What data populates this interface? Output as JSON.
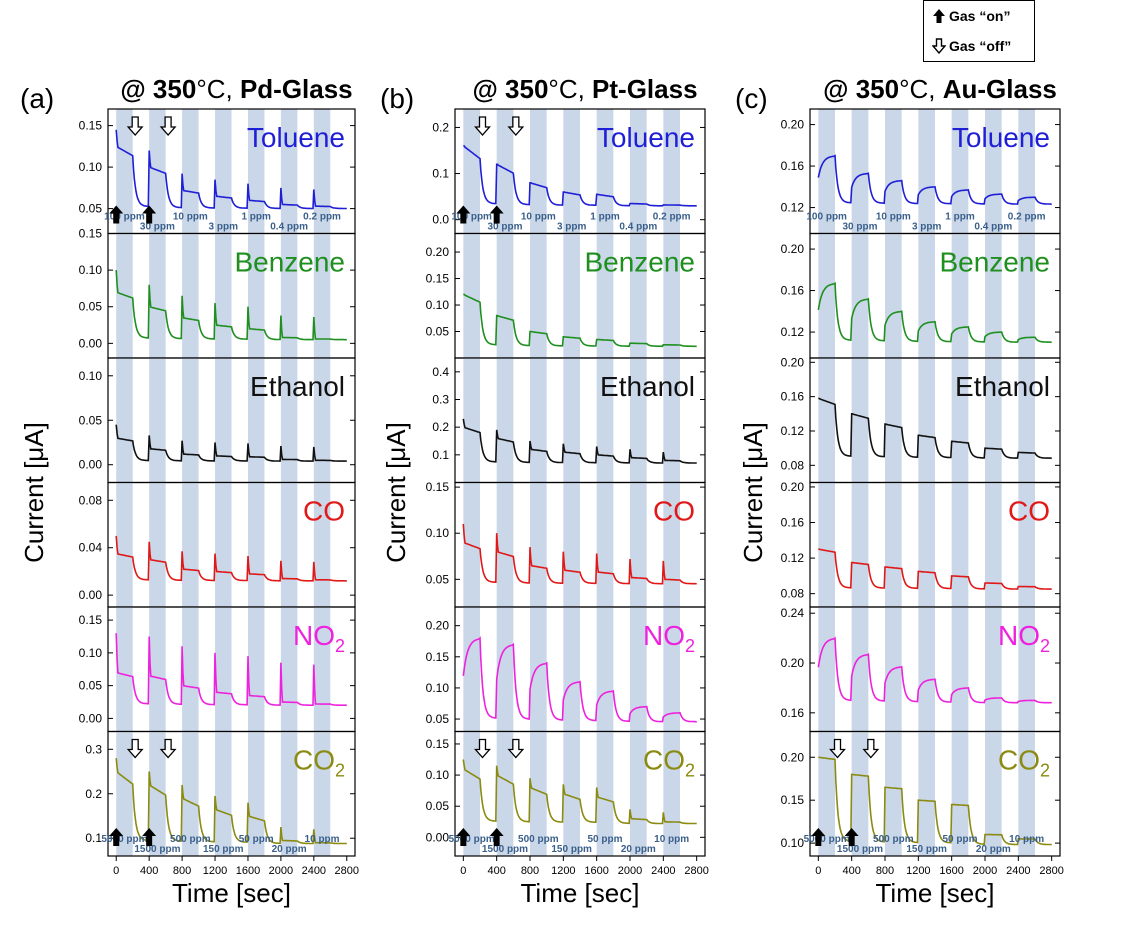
{
  "legend": {
    "on_label": "Gas “on”",
    "off_label": "Gas “off”"
  },
  "x_axis": {
    "label": "Time [sec]",
    "ticks": [
      "0",
      "400",
      "800",
      "1200",
      "1600",
      "2000",
      "2400",
      "2800"
    ],
    "values": [
      0,
      400,
      800,
      1200,
      1600,
      2000,
      2400,
      2800
    ],
    "range": [
      -100,
      2900
    ]
  },
  "y_label": "Current [μA]",
  "gas_on_intervals": [
    [
      0,
      200
    ],
    [
      400,
      600
    ],
    [
      800,
      1000
    ],
    [
      1200,
      1400
    ],
    [
      1600,
      1800
    ],
    [
      2000,
      2200
    ],
    [
      2400,
      2600
    ]
  ],
  "concentration_labels": {
    "standard": [
      "100 ppm",
      "30 ppm",
      "10 ppm",
      "3 ppm",
      "1 ppm",
      "0.4 ppm",
      "0.2 ppm"
    ],
    "co2": [
      "5000 ppm",
      "1500 ppm",
      "500 ppm",
      "150 ppm",
      "50 ppm",
      "20 ppm",
      "10 ppm"
    ]
  },
  "colors": {
    "Toluene": "#1f1fd6",
    "Benzene": "#1f8f1f",
    "Ethanol": "#111111",
    "CO": "#e01818",
    "NO2": "#ee22dd",
    "CO2": "#8b8b12",
    "stripe": "#c9d7e8"
  },
  "chart_data": [
    {
      "type": "line",
      "panel_letter": "(a)",
      "title": "@ 350°C, Pd-Glass",
      "subplots": [
        {
          "gas": "Toluene",
          "label": "Toluene",
          "ylim": [
            0.02,
            0.17
          ],
          "yticks": [
            "0.05",
            "0.10",
            "0.15"
          ],
          "ytick_values": [
            0.05,
            0.1,
            0.15
          ],
          "base": 0.05,
          "peaks": [
            0.125,
            0.1,
            0.072,
            0.065,
            0.06,
            0.055,
            0.053
          ],
          "decay": 0.6,
          "spike": 0.02,
          "arrows": [
            {
              "kind": "on",
              "t": 0
            },
            {
              "kind": "off",
              "t": 200
            },
            {
              "kind": "on",
              "t": 400
            },
            {
              "kind": "off",
              "t": 600
            }
          ]
        },
        {
          "gas": "Benzene",
          "label": "Benzene",
          "ylim": [
            -0.02,
            0.15
          ],
          "yticks": [
            "0.00",
            "0.05",
            "0.10",
            "0.15"
          ],
          "ytick_values": [
            0.0,
            0.05,
            0.1,
            0.15
          ],
          "base": 0.005,
          "peaks": [
            0.07,
            0.05,
            0.035,
            0.025,
            0.02,
            0.008,
            0.006
          ],
          "decay": 0.5,
          "spike": 0.03,
          "arrows": []
        },
        {
          "gas": "Ethanol",
          "label": "Ethanol",
          "ylim": [
            -0.02,
            0.12
          ],
          "yticks": [
            "0.00",
            "0.05",
            "0.10"
          ],
          "ytick_values": [
            0.0,
            0.05,
            0.1
          ],
          "base": 0.004,
          "peaks": [
            0.03,
            0.018,
            0.012,
            0.01,
            0.009,
            0.006,
            0.005
          ],
          "decay": 0.5,
          "spike": 0.015,
          "arrows": []
        },
        {
          "gas": "CO",
          "label": "CO",
          "ylim": [
            -0.01,
            0.095
          ],
          "yticks": [
            "0.00",
            "0.04",
            "0.08"
          ],
          "ytick_values": [
            0.0,
            0.04,
            0.08
          ],
          "base": 0.012,
          "peaks": [
            0.035,
            0.03,
            0.022,
            0.02,
            0.018,
            0.014,
            0.013
          ],
          "decay": 0.5,
          "spike": 0.015,
          "arrows": []
        },
        {
          "gas": "NO2",
          "label": "NO",
          "label_sub": "2",
          "ylim": [
            -0.02,
            0.17
          ],
          "yticks": [
            "0.00",
            "0.05",
            "0.10",
            "0.15"
          ],
          "ytick_values": [
            0.0,
            0.05,
            0.1,
            0.15
          ],
          "base": 0.02,
          "peaks": [
            0.07,
            0.065,
            0.05,
            0.04,
            0.035,
            0.025,
            0.022
          ],
          "decay": 0.5,
          "spike": 0.06,
          "arrows": []
        },
        {
          "gas": "CO2",
          "label": "CO",
          "label_sub": "2",
          "ylim": [
            0.06,
            0.34
          ],
          "yticks": [
            "0.1",
            "0.2",
            "0.3"
          ],
          "ytick_values": [
            0.1,
            0.2,
            0.3
          ],
          "base": 0.088,
          "peaks": [
            0.25,
            0.22,
            0.19,
            0.165,
            0.15,
            0.095,
            0.09
          ],
          "decay": 0.7,
          "spike": 0.03,
          "arrows": [
            {
              "kind": "on",
              "t": 0
            },
            {
              "kind": "off",
              "t": 200
            },
            {
              "kind": "on",
              "t": 400
            },
            {
              "kind": "off",
              "t": 600
            }
          ]
        }
      ]
    },
    {
      "type": "line",
      "panel_letter": "(b)",
      "title": "@ 350°C, Pt-Glass",
      "subplots": [
        {
          "gas": "Toluene",
          "label": "Toluene",
          "ylim": [
            -0.03,
            0.24
          ],
          "yticks": [
            "0.0",
            "0.1",
            "0.2"
          ],
          "ytick_values": [
            0.0,
            0.1,
            0.2
          ],
          "base": 0.03,
          "peaks": [
            0.16,
            0.12,
            0.08,
            0.06,
            0.055,
            0.035,
            0.032
          ],
          "decay": 0.85,
          "spike": 0.0,
          "arrows": [
            {
              "kind": "on",
              "t": 0
            },
            {
              "kind": "off",
              "t": 200
            },
            {
              "kind": "on",
              "t": 400
            },
            {
              "kind": "off",
              "t": 600
            }
          ]
        },
        {
          "gas": "Benzene",
          "label": "Benzene",
          "ylim": [
            0.0,
            0.235
          ],
          "yticks": [
            "0.05",
            "0.10",
            "0.15",
            "0.20"
          ],
          "ytick_values": [
            0.05,
            0.1,
            0.15,
            0.2
          ],
          "base": 0.022,
          "peaks": [
            0.12,
            0.08,
            0.05,
            0.04,
            0.035,
            0.028,
            0.025
          ],
          "decay": 0.6,
          "spike": 0.0,
          "arrows": []
        },
        {
          "gas": "Ethanol",
          "label": "Ethanol",
          "ylim": [
            0.0,
            0.45
          ],
          "yticks": [
            "0.1",
            "0.2",
            "0.3",
            "0.4"
          ],
          "ytick_values": [
            0.1,
            0.2,
            0.3,
            0.4
          ],
          "base": 0.07,
          "peaks": [
            0.2,
            0.16,
            0.12,
            0.11,
            0.1,
            0.09,
            0.08
          ],
          "decay": 0.6,
          "spike": 0.03,
          "arrows": []
        },
        {
          "gas": "CO",
          "label": "CO",
          "ylim": [
            0.02,
            0.155
          ],
          "yticks": [
            "0.05",
            "0.10",
            "0.15"
          ],
          "ytick_values": [
            0.05,
            0.1,
            0.15
          ],
          "base": 0.045,
          "peaks": [
            0.09,
            0.08,
            0.065,
            0.06,
            0.058,
            0.052,
            0.05
          ],
          "decay": 0.6,
          "spike": 0.02,
          "arrows": []
        },
        {
          "gas": "NO2",
          "label": "NO",
          "label_sub": "2",
          "ylim": [
            0.03,
            0.23
          ],
          "yticks": [
            "0.05",
            "0.10",
            "0.15",
            "0.20"
          ],
          "ytick_values": [
            0.05,
            0.1,
            0.15,
            0.2
          ],
          "base": 0.045,
          "peaks": [
            0.18,
            0.17,
            0.14,
            0.11,
            0.095,
            0.07,
            0.06
          ],
          "decay": -0.6,
          "spike": 0.0,
          "arrows": []
        },
        {
          "gas": "CO2",
          "label": "CO",
          "label_sub": "2",
          "ylim": [
            -0.03,
            0.17
          ],
          "yticks": [
            "0.00",
            "0.05",
            "0.10",
            "0.15"
          ],
          "ytick_values": [
            0.0,
            0.05,
            0.1,
            0.15
          ],
          "base": 0.022,
          "peaks": [
            0.11,
            0.1,
            0.08,
            0.07,
            0.065,
            0.03,
            0.025
          ],
          "decay": 0.75,
          "spike": 0.015,
          "arrows": [
            {
              "kind": "on",
              "t": 0
            },
            {
              "kind": "off",
              "t": 200
            },
            {
              "kind": "on",
              "t": 400
            },
            {
              "kind": "off",
              "t": 600
            }
          ]
        }
      ]
    },
    {
      "type": "line",
      "panel_letter": "(c)",
      "title": "@ 350°C, Au-Glass",
      "subplots": [
        {
          "gas": "Toluene",
          "label": "Toluene",
          "ylim": [
            0.095,
            0.215
          ],
          "yticks": [
            "0.12",
            "0.16",
            "0.20"
          ],
          "ytick_values": [
            0.12,
            0.16,
            0.2
          ],
          "base": 0.123,
          "peaks": [
            0.17,
            0.153,
            0.146,
            0.14,
            0.137,
            0.133,
            0.13
          ],
          "decay": -0.5,
          "spike": 0.0,
          "arrows": []
        },
        {
          "gas": "Benzene",
          "label": "Benzene",
          "ylim": [
            0.095,
            0.215
          ],
          "yticks": [
            "0.12",
            "0.16",
            "0.20"
          ],
          "ytick_values": [
            0.12,
            0.16,
            0.2
          ],
          "base": 0.11,
          "peaks": [
            0.167,
            0.152,
            0.14,
            0.13,
            0.125,
            0.12,
            0.115
          ],
          "decay": -0.5,
          "spike": 0.0,
          "arrows": []
        },
        {
          "gas": "Ethanol",
          "label": "Ethanol",
          "ylim": [
            0.06,
            0.205
          ],
          "yticks": [
            "0.08",
            "0.12",
            "0.16",
            "0.20"
          ],
          "ytick_values": [
            0.08,
            0.12,
            0.16,
            0.2
          ],
          "base": 0.088,
          "peaks": [
            0.158,
            0.14,
            0.128,
            0.115,
            0.108,
            0.1,
            0.095
          ],
          "decay": 0.4,
          "spike": 0.0,
          "arrows": []
        },
        {
          "gas": "CO",
          "label": "CO",
          "ylim": [
            0.065,
            0.205
          ],
          "yticks": [
            "0.08",
            "0.12",
            "0.16",
            "0.20"
          ],
          "ytick_values": [
            0.08,
            0.12,
            0.16,
            0.2
          ],
          "base": 0.085,
          "peaks": [
            0.13,
            0.115,
            0.11,
            0.105,
            0.1,
            0.092,
            0.088
          ],
          "decay": 0.3,
          "spike": 0.0,
          "arrows": []
        },
        {
          "gas": "NO2",
          "label": "NO",
          "label_sub": "2",
          "ylim": [
            0.145,
            0.245
          ],
          "yticks": [
            "0.16",
            "0.20",
            "0.24"
          ],
          "ytick_values": [
            0.16,
            0.2,
            0.24
          ],
          "base": 0.168,
          "peaks": [
            0.22,
            0.207,
            0.197,
            0.187,
            0.18,
            0.172,
            0.17
          ],
          "decay": -0.6,
          "spike": 0.0,
          "arrows": []
        },
        {
          "gas": "CO2",
          "label": "CO",
          "label_sub": "2",
          "ylim": [
            0.085,
            0.23
          ],
          "yticks": [
            "0.10",
            "0.15",
            "0.20"
          ],
          "ytick_values": [
            0.1,
            0.15,
            0.2
          ],
          "base": 0.098,
          "peaks": [
            0.2,
            0.18,
            0.165,
            0.15,
            0.145,
            0.11,
            0.105
          ],
          "decay": 0.1,
          "spike": 0.0,
          "arrows": [
            {
              "kind": "on",
              "t": 0
            },
            {
              "kind": "off",
              "t": 200
            },
            {
              "kind": "on",
              "t": 400
            },
            {
              "kind": "off",
              "t": 600
            }
          ]
        }
      ]
    }
  ]
}
